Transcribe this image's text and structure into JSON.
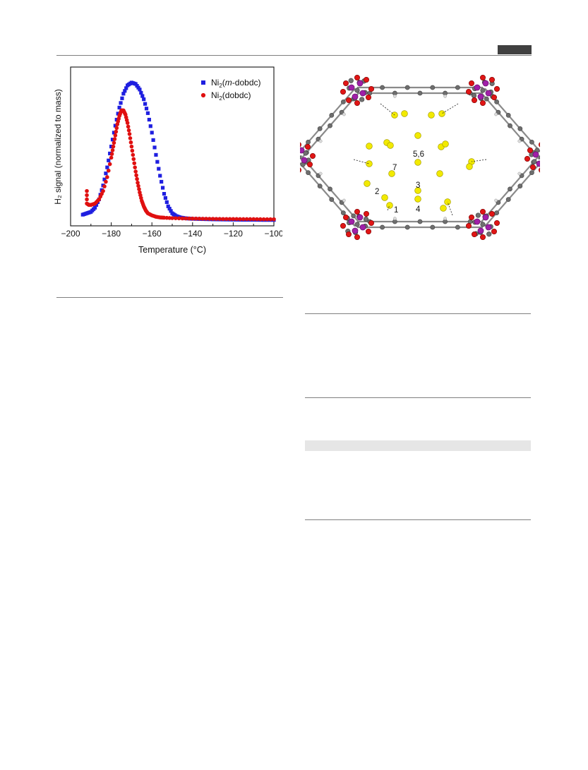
{
  "chart_data": {
    "type": "scatter",
    "xlabel": "Temperature (°C)",
    "ylabel": "H₂ signal (normalized to mass)",
    "xlim": [
      -200,
      -100
    ],
    "ylim": [
      0,
      1
    ],
    "xticks": [
      -200,
      -180,
      -160,
      -140,
      -120,
      -100
    ],
    "xtick_labels": [
      "−200",
      "−180",
      "−160",
      "−140",
      "−120",
      "−100"
    ],
    "legend_position": "top-right",
    "series": [
      {
        "name": "Ni₂(m-dobdc)",
        "name_parts": {
          "pre": "Ni",
          "sub": "2",
          "open": "(",
          "ital": "m",
          "rest": "-dobdc)"
        },
        "color": "#1f1fe0",
        "marker": "square",
        "x": [
          -194,
          -192,
          -190,
          -188,
          -186,
          -184,
          -182,
          -180,
          -178,
          -176,
          -174,
          -172,
          -170,
          -168,
          -166,
          -164,
          -162,
          -160,
          -158,
          -156,
          -154,
          -152,
          -150,
          -148,
          -146,
          -144,
          -142,
          -140,
          -135,
          -130,
          -125,
          -120,
          -115,
          -110,
          -105,
          -100
        ],
        "y": [
          0.05,
          0.06,
          0.07,
          0.1,
          0.16,
          0.26,
          0.39,
          0.54,
          0.69,
          0.82,
          0.92,
          0.98,
          1.0,
          0.99,
          0.95,
          0.88,
          0.78,
          0.64,
          0.48,
          0.33,
          0.2,
          0.11,
          0.06,
          0.04,
          0.03,
          0.025,
          0.022,
          0.02,
          0.018,
          0.016,
          0.015,
          0.014,
          0.013,
          0.013,
          0.012,
          0.012
        ]
      },
      {
        "name": "Ni₂(dobdc)",
        "name_parts": {
          "pre": "Ni",
          "sub": "2",
          "open": "(",
          "ital": "",
          "rest": "dobdc)"
        },
        "color": "#e01010",
        "marker": "circle",
        "x": [
          -192,
          -192,
          -191,
          -190,
          -188,
          -186,
          -184,
          -182,
          -180,
          -179,
          -178,
          -177,
          -176,
          -175,
          -174,
          -173,
          -172,
          -171,
          -170,
          -169,
          -168,
          -167,
          -166,
          -165,
          -164,
          -163,
          -162,
          -160,
          -158,
          -156,
          -154,
          -150,
          -145,
          -140,
          -135,
          -130,
          -125,
          -120,
          -115,
          -110,
          -105,
          -100
        ],
        "y": [
          0.22,
          0.13,
          0.12,
          0.12,
          0.13,
          0.16,
          0.22,
          0.32,
          0.46,
          0.54,
          0.62,
          0.7,
          0.76,
          0.8,
          0.8,
          0.77,
          0.71,
          0.63,
          0.54,
          0.45,
          0.36,
          0.28,
          0.21,
          0.15,
          0.11,
          0.08,
          0.06,
          0.045,
          0.035,
          0.03,
          0.028,
          0.025,
          0.023,
          0.022,
          0.021,
          0.02,
          0.019,
          0.019,
          0.018,
          0.018,
          0.017,
          0.017
        ]
      }
    ]
  },
  "structure": {
    "site_labels": [
      "5,6",
      "7",
      "3",
      "2",
      "1",
      "4"
    ]
  }
}
